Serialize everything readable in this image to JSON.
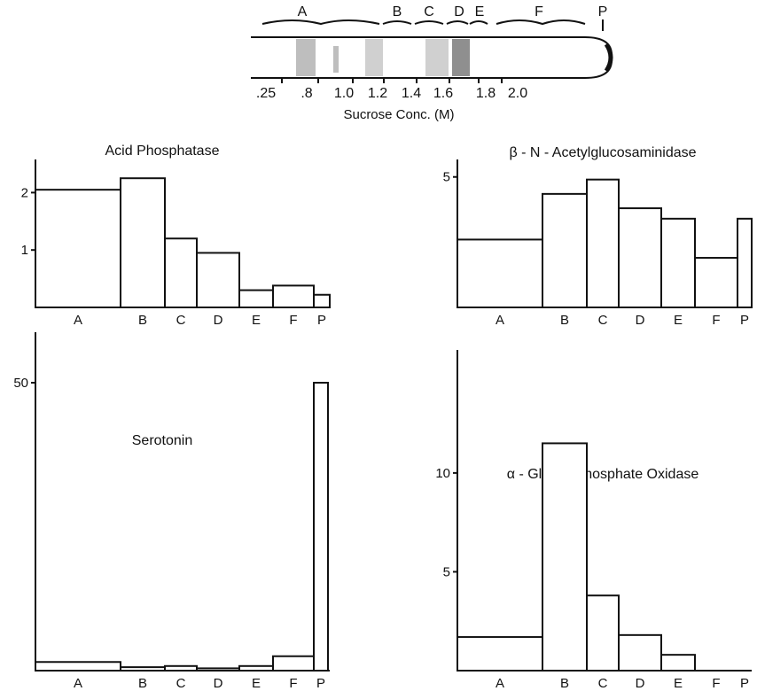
{
  "tube": {
    "fraction_labels": [
      "A",
      "B",
      "C",
      "D",
      "E",
      "F",
      "P"
    ],
    "scale_ticks": [
      ".25",
      ".8",
      "1.0",
      "1.2",
      "1.4",
      "1.6",
      "1.8",
      "2.0"
    ],
    "axis_label": "Sucrose Conc. (M)"
  },
  "chart_data": [
    {
      "type": "bar",
      "title": "Acid Phosphatase",
      "categories": [
        "A",
        "B",
        "C",
        "D",
        "E",
        "F",
        "P"
      ],
      "series": [
        {
          "values": [
            2.05,
            2.25,
            1.2,
            0.95,
            0.3,
            0.38,
            0.22
          ]
        }
      ],
      "ylim": [
        0,
        2.5
      ],
      "yticks": [
        1,
        2
      ],
      "ytick_labels": [
        "1",
        "2"
      ],
      "xlabel": "",
      "ylabel": ""
    },
    {
      "type": "bar",
      "title": "β - N - Acetylglucosaminidase",
      "categories": [
        "A",
        "B",
        "C",
        "D",
        "E",
        "F",
        "P"
      ],
      "series": [
        {
          "values": [
            2.6,
            4.35,
            4.9,
            3.8,
            3.4,
            1.9,
            3.4
          ]
        }
      ],
      "ylim": [
        0,
        5.5
      ],
      "yticks": [
        5
      ],
      "ytick_labels": [
        "5"
      ],
      "xlabel": "",
      "ylabel": ""
    },
    {
      "type": "bar",
      "title": "Serotonin",
      "categories": [
        "A",
        "B",
        "C",
        "D",
        "E",
        "F",
        "P"
      ],
      "series": [
        {
          "values": [
            1.5,
            0.6,
            0.8,
            0.4,
            0.8,
            2.5,
            50
          ]
        }
      ],
      "ylim": [
        0,
        58
      ],
      "yticks": [
        50
      ],
      "ytick_labels": [
        "50"
      ],
      "xlabel": "",
      "ylabel": ""
    },
    {
      "type": "bar",
      "title": "α - Glycerophosphate Oxidase",
      "categories": [
        "A",
        "B",
        "C",
        "D",
        "E",
        "F",
        "P"
      ],
      "series": [
        {
          "values": [
            1.7,
            11.5,
            3.8,
            1.8,
            0.8,
            0,
            0
          ]
        }
      ],
      "ylim": [
        0,
        16
      ],
      "yticks": [
        5,
        10
      ],
      "ytick_labels": [
        "5",
        "10"
      ],
      "xlabel": "",
      "ylabel": ""
    }
  ]
}
